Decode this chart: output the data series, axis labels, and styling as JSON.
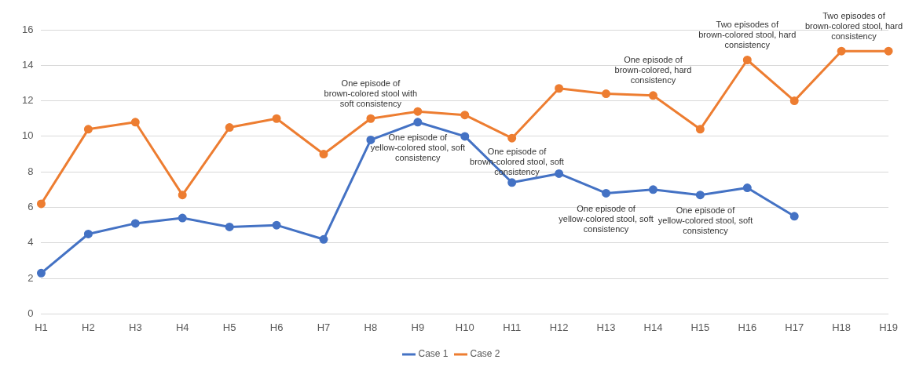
{
  "chart_data": {
    "type": "line",
    "categories": [
      "H1",
      "H2",
      "H3",
      "H4",
      "H5",
      "H6",
      "H7",
      "H8",
      "H9",
      "H10",
      "H11",
      "H12",
      "H13",
      "H14",
      "H15",
      "H16",
      "H17",
      "H18",
      "H19"
    ],
    "series": [
      {
        "name": "Case 1",
        "color": "#4472c4",
        "values": [
          2.3,
          4.5,
          5.1,
          5.4,
          4.9,
          5.0,
          4.2,
          9.8,
          10.8,
          10.0,
          7.4,
          7.9,
          6.8,
          7.0,
          6.7,
          7.1,
          5.5,
          null,
          null
        ]
      },
      {
        "name": "Case 2",
        "color": "#ed7d31",
        "values": [
          6.2,
          10.4,
          10.8,
          6.7,
          10.5,
          11.0,
          9.0,
          11.0,
          11.4,
          11.2,
          9.9,
          12.7,
          12.4,
          12.3,
          10.4,
          14.3,
          12.0,
          14.8,
          14.8
        ]
      }
    ],
    "ylim": [
      0,
      16
    ],
    "yticks": [
      0,
      2,
      4,
      6,
      8,
      10,
      12,
      14,
      16
    ],
    "grid": "y",
    "legend": "bottom",
    "marker": "circle",
    "line_style": "solid",
    "annotations": [
      {
        "text": "One episode of brown-colored stool with soft consistency",
        "x": "H8",
        "y": 11.0
      },
      {
        "text": "One episode of yellow-colored stool, soft consistency",
        "x": "H9",
        "y": 10.8
      },
      {
        "text": "One episode of brown-colored stool, soft consistency",
        "x": "H10",
        "y": 10.0
      },
      {
        "text": "One episode of yellow-colored stool, soft consistency",
        "x": "H13",
        "y": 6.8
      },
      {
        "text": "One episode of brown-colored, hard consistency",
        "x": "H14",
        "y": 12.3
      },
      {
        "text": "One episode of yellow-colored stool, soft consistency",
        "x": "H15",
        "y": 6.7
      },
      {
        "text": "Two episodes of brown-colored stool, hard consistency",
        "x": "H16",
        "y": 14.3
      },
      {
        "text": "Two episodes of brown-colored stool, hard consistency",
        "x": "H19",
        "y": 14.8
      }
    ]
  }
}
